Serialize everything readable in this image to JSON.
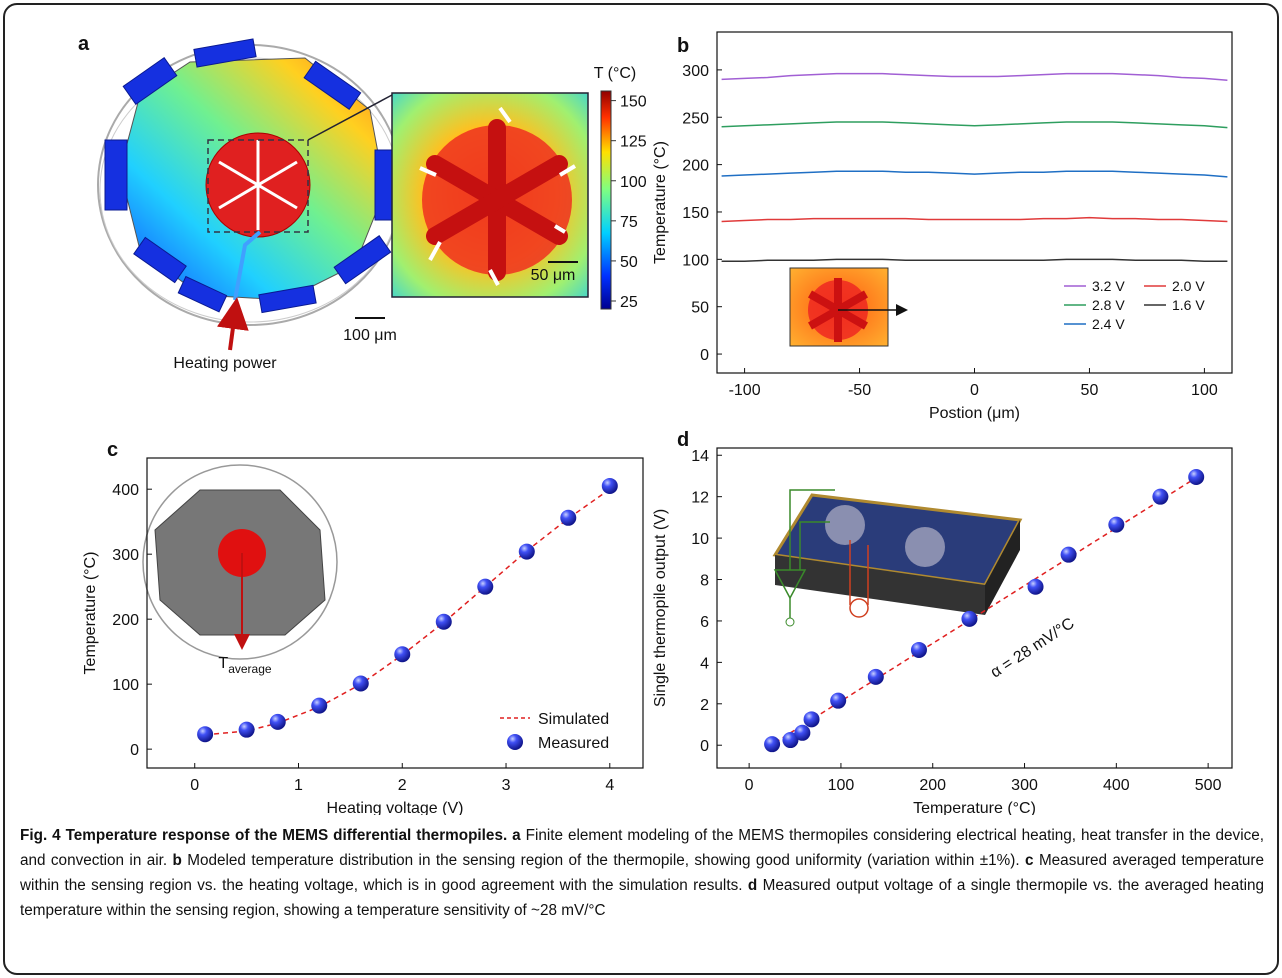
{
  "panel_a": {
    "label": "a",
    "colorbar": {
      "title": "T (°C)",
      "lim": [
        20,
        156
      ],
      "ticks": [
        25,
        50,
        75,
        100,
        125,
        150
      ]
    },
    "scale_outer": "100 μm",
    "scale_inset": "50 μm",
    "arrow_label": "Heating power"
  },
  "chart_data": [
    {
      "type": "line",
      "label": "b",
      "x_label": "Postion (μm)",
      "y_label": "Temperature (°C)",
      "x": [
        -110,
        -100,
        -90,
        -80,
        -70,
        -60,
        -50,
        -40,
        -30,
        -20,
        -10,
        0,
        10,
        20,
        30,
        40,
        50,
        60,
        70,
        80,
        90,
        100,
        110
      ],
      "xlim": [
        -112,
        112
      ],
      "xticks": [
        -100,
        -50,
        0,
        50,
        100
      ],
      "ylim": [
        -20,
        340
      ],
      "yticks": [
        0,
        50,
        100,
        150,
        200,
        250,
        300
      ],
      "series": [
        {
          "name": "3.2 V",
          "color": "#a15fd4",
          "values": [
            290,
            291,
            292,
            294,
            295,
            296,
            296,
            296,
            295,
            294,
            293,
            293,
            293,
            294,
            295,
            296,
            296,
            296,
            295,
            294,
            292,
            291,
            289
          ]
        },
        {
          "name": "2.8 V",
          "color": "#2e9e5f",
          "values": [
            240,
            241,
            242,
            243,
            244,
            245,
            245,
            245,
            244,
            243,
            242,
            241,
            242,
            243,
            244,
            245,
            245,
            245,
            244,
            243,
            242,
            241,
            239
          ]
        },
        {
          "name": "2.4 V",
          "color": "#1f6fc4",
          "values": [
            188,
            189,
            190,
            191,
            192,
            193,
            193,
            193,
            192,
            192,
            191,
            190,
            191,
            192,
            192,
            193,
            193,
            193,
            192,
            191,
            190,
            189,
            187
          ]
        },
        {
          "name": "2.0 V",
          "color": "#e03a3a",
          "values": [
            140,
            141,
            142,
            142,
            143,
            143,
            143,
            143,
            143,
            142,
            142,
            142,
            142,
            142,
            143,
            143,
            144,
            143,
            143,
            142,
            142,
            141,
            140
          ]
        },
        {
          "name": "1.6 V",
          "color": "#333333",
          "values": [
            98,
            98,
            99,
            99,
            99,
            100,
            100,
            100,
            99,
            99,
            99,
            99,
            99,
            99,
            99,
            100,
            100,
            100,
            99,
            99,
            99,
            98,
            98
          ]
        }
      ]
    },
    {
      "type": "scatter",
      "label": "c",
      "x_label": "Heating voltage (V)",
      "y_label": "Temperature (°C)",
      "xlim": [
        -0.46,
        4.32
      ],
      "xticks": [
        0,
        1,
        2,
        3,
        4
      ],
      "ylim": [
        -29,
        448
      ],
      "yticks": [
        0,
        100,
        200,
        300,
        400
      ],
      "annotation": {
        "text": "T",
        "subscript": "average"
      },
      "series": [
        {
          "name": "Simulated",
          "kind": "line",
          "dashed": true,
          "color": "#e02020",
          "x": [
            0.1,
            0.5,
            0.8,
            1.2,
            1.6,
            2.0,
            2.4,
            2.8,
            3.2,
            3.6,
            4.0
          ],
          "values": [
            22,
            28,
            40,
            65,
            100,
            145,
            195,
            250,
            305,
            355,
            400
          ]
        },
        {
          "name": "Measured",
          "kind": "scatter",
          "color": "#2a35e8",
          "x": [
            0.1,
            0.5,
            0.8,
            1.2,
            1.6,
            2.0,
            2.4,
            2.8,
            3.2,
            3.6,
            4.0
          ],
          "values": [
            23,
            30,
            42,
            67,
            101,
            146,
            196,
            250,
            304,
            356,
            405
          ]
        }
      ]
    },
    {
      "type": "scatter",
      "label": "d",
      "x_label": "Temperature (°C)",
      "y_label": "Single thermopile output (V)",
      "xlim": [
        -35,
        526
      ],
      "xticks": [
        0,
        100,
        200,
        300,
        400,
        500
      ],
      "ylim": [
        -1.1,
        14.35
      ],
      "yticks": [
        0,
        2,
        4,
        6,
        8,
        10,
        12,
        14
      ],
      "annotation": {
        "text": "α = 28 mV/°C"
      },
      "series": [
        {
          "kind": "line",
          "dashed": true,
          "color": "#e02020",
          "x": [
            20,
            490
          ],
          "values": [
            -0.1,
            13.0
          ]
        },
        {
          "kind": "scatter",
          "color": "#2a35e8",
          "x": [
            25,
            45,
            58,
            68,
            97,
            138,
            185,
            240,
            312,
            348,
            400,
            448,
            487
          ],
          "values": [
            0.05,
            0.25,
            0.6,
            1.25,
            2.15,
            3.3,
            4.6,
            6.1,
            7.65,
            9.2,
            10.65,
            12.0,
            12.95
          ]
        }
      ]
    }
  ],
  "caption": {
    "title": "Fig. 4 Temperature response of the MEMS differential thermopiles.",
    "items": [
      {
        "label": "a",
        "text": "Finite element modeling of the MEMS thermopiles considering electrical heating, heat transfer in the device, and convection in air."
      },
      {
        "label": "b",
        "text": "Modeled temperature distribution in the sensing region of the thermopile, showing good uniformity (variation within ±1%)."
      },
      {
        "label": "c",
        "text": "Measured averaged temperature within the sensing region vs. the heating voltage, which is in good agreement with the simulation results."
      },
      {
        "label": "d",
        "text": "Measured output voltage of a single thermopile vs. the averaged heating temperature within the sensing region, showing a temperature sensitivity of ~28 mV/°C"
      }
    ]
  }
}
